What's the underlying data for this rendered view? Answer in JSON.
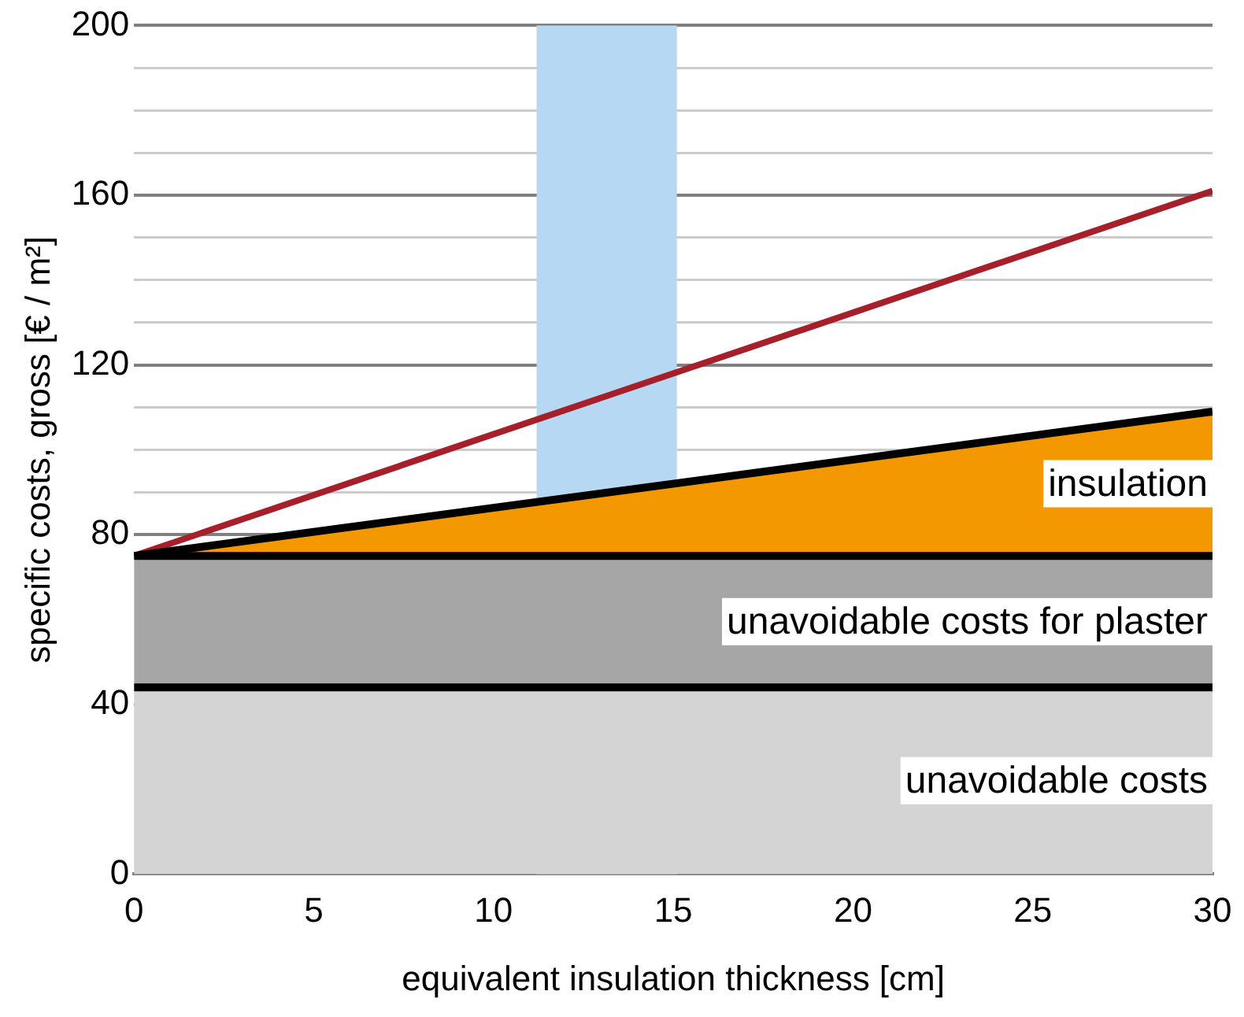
{
  "chart_data": {
    "type": "area",
    "stacked": true,
    "xlabel": "equivalent insulation thickness [cm]",
    "ylabel": "specific costs, gross [€ / m²]",
    "x": [
      0,
      30
    ],
    "series": [
      {
        "name": "unavoidable costs",
        "color": "#d4d4d4",
        "values": [
          44,
          44
        ]
      },
      {
        "name": "unavoidable costs for plaster",
        "color": "#a6a6a6",
        "values": [
          31,
          31
        ]
      },
      {
        "name": "insulation",
        "color": "#f39800",
        "values": [
          0,
          34
        ]
      },
      {
        "type": "line",
        "color": "#a5202a",
        "values": [
          75,
          161
        ]
      }
    ],
    "bands": [
      {
        "axis": "x",
        "from": 11.2,
        "to": 15.1,
        "color": "#b7d8f2"
      }
    ],
    "xlim": [
      0,
      30
    ],
    "xticks": [
      0,
      5,
      10,
      15,
      20,
      25,
      30
    ],
    "ylim": [
      0,
      200
    ],
    "yticks": [
      0,
      40,
      80,
      {
        "value": 90,
        "label": null
      },
      {
        "value": 100,
        "label": null
      },
      {
        "value": 110,
        "label": null
      },
      120,
      {
        "value": 130,
        "label": null
      },
      {
        "value": 140,
        "label": null
      },
      {
        "value": 150,
        "label": null
      },
      160,
      {
        "value": 170,
        "label": null
      },
      {
        "value": 180,
        "label": null
      },
      {
        "value": 190,
        "label": null
      },
      200
    ],
    "grid": "y",
    "legend": "right"
  }
}
